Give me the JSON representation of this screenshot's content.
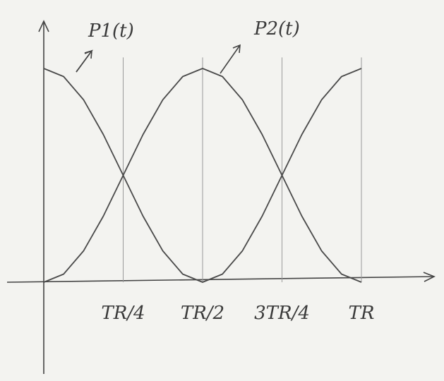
{
  "chart_data": {
    "type": "line",
    "x": [
      0,
      0.0625,
      0.125,
      0.1875,
      0.25,
      0.3125,
      0.375,
      0.4375,
      0.5,
      0.5625,
      0.625,
      0.6875,
      0.75,
      0.8125,
      0.875,
      0.9375,
      1
    ],
    "series": [
      {
        "name": "P1(t)",
        "color": "#4a4a4a",
        "values": [
          1,
          0.962,
          0.854,
          0.691,
          0.5,
          0.309,
          0.146,
          0.038,
          0,
          0.038,
          0.146,
          0.309,
          0.5,
          0.691,
          0.854,
          0.962,
          1
        ]
      },
      {
        "name": "P2(t)",
        "color": "#4a4a4a",
        "values": [
          0,
          0.038,
          0.146,
          0.309,
          0.5,
          0.691,
          0.854,
          0.962,
          1,
          0.962,
          0.854,
          0.691,
          0.5,
          0.309,
          0.146,
          0.038,
          0
        ]
      }
    ],
    "xlim": [
      0,
      1.2
    ],
    "ylim": [
      0,
      1.2
    ],
    "xticks": [
      {
        "value": 0.25,
        "label": "TR/4"
      },
      {
        "value": 0.5,
        "label": "TR/2"
      },
      {
        "value": 0.75,
        "label": "3TR/4"
      },
      {
        "value": 1,
        "label": "TR"
      }
    ],
    "grid": true
  }
}
